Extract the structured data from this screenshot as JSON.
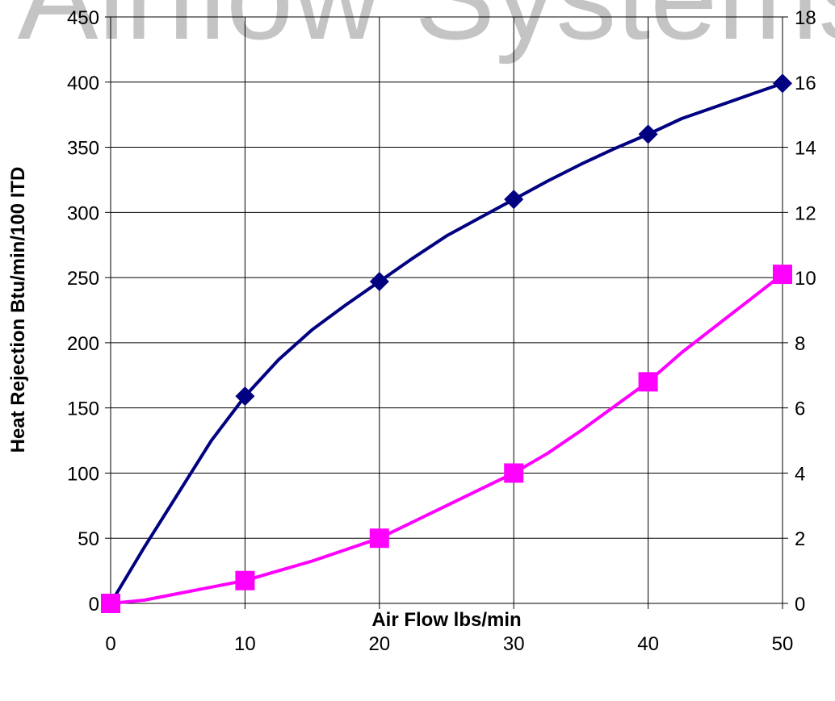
{
  "watermark": "Airflow Systems",
  "colors": {
    "series1": "#000080",
    "series2": "#ff00ff",
    "grid": "#000000",
    "watermark": "#c4c4c4"
  },
  "chart_data": {
    "type": "line",
    "title": "",
    "xlabel": "Air Flow lbs/min",
    "ylabel": "Heat Rejection Btu/min/100 ITD",
    "y2label": "",
    "xlim": [
      0,
      50
    ],
    "ylim": [
      0,
      450
    ],
    "y2lim": [
      0,
      18
    ],
    "xticks": [
      0,
      10,
      20,
      30,
      40,
      50
    ],
    "yticks": [
      0,
      50,
      100,
      150,
      200,
      250,
      300,
      350,
      400,
      450
    ],
    "y2ticks": [
      0,
      2,
      4,
      6,
      8,
      10,
      12,
      14,
      16,
      18
    ],
    "grid": true,
    "legend": "none",
    "series": [
      {
        "axis": "left",
        "marker": "diamond",
        "color": "#000080",
        "x": [
          0,
          10,
          20,
          30,
          40,
          50
        ],
        "values": [
          0,
          159,
          247,
          310,
          360,
          399
        ],
        "curve_x": [
          0,
          2.5,
          5,
          7.5,
          10,
          12.5,
          15,
          17.5,
          20,
          22.5,
          25,
          27.5,
          30,
          32.5,
          35,
          37.5,
          40,
          42.5,
          45,
          47.5,
          50
        ],
        "curve_y": [
          0,
          43,
          84,
          125,
          159,
          187,
          210,
          229,
          247,
          265,
          282,
          296,
          310,
          324,
          337,
          349,
          360,
          372,
          381,
          390,
          399
        ]
      },
      {
        "axis": "right",
        "marker": "square",
        "color": "#ff00ff",
        "x": [
          0,
          10,
          20,
          30,
          40,
          50
        ],
        "values": [
          0,
          0.7,
          2.0,
          4.0,
          6.8,
          10.1
        ],
        "curve_x": [
          0,
          2.5,
          5,
          7.5,
          10,
          12.5,
          15,
          17.5,
          20,
          22.5,
          25,
          27.5,
          30,
          32.5,
          35,
          37.5,
          40,
          42.5,
          45,
          47.5,
          50
        ],
        "curve_y": [
          0,
          0.1,
          0.3,
          0.5,
          0.7,
          1.0,
          1.3,
          1.65,
          2.0,
          2.5,
          3.0,
          3.5,
          4.0,
          4.6,
          5.3,
          6.05,
          6.8,
          7.7,
          8.5,
          9.3,
          10.1
        ]
      }
    ]
  }
}
